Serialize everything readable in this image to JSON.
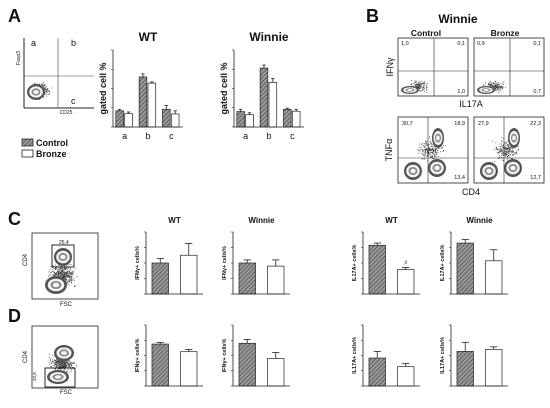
{
  "panel_letters": [
    "A",
    "B",
    "C",
    "D"
  ],
  "panelA": {
    "dot_plot": {
      "y_axis": "Foxp3",
      "x_axis": "CD25",
      "quadrants": [
        "a",
        "b",
        "c"
      ]
    },
    "legend": [
      "Control",
      "Bronze"
    ]
  },
  "panelB": {
    "title": "Winnie",
    "columns": [
      "Control",
      "Bronze"
    ],
    "top": {
      "y_axis": "IFNγ",
      "x_axis": "IL17A",
      "control": {
        "ul": "1,0",
        "ur": "0,1",
        "lr": "1,0"
      },
      "bronze": {
        "ul": "0,9",
        "ur": "0,1",
        "lr": "0,7"
      }
    },
    "bottom": {
      "y_axis": "TNFα",
      "x_axis": "CD4",
      "control": {
        "ul": "30,7",
        "ur": "18,9",
        "lr": "13,4"
      },
      "bronze": {
        "ul": "27,9",
        "ur": "22,3",
        "lr": "12,7"
      }
    }
  },
  "panelC": {
    "gate_value": "25,4",
    "y_axis": "CD4",
    "x_axis": "FSC"
  },
  "panelD": {
    "gate_value": "33,8",
    "y_axis": "CD4",
    "x_axis": "FSC"
  },
  "colors": {
    "hatch": "#6b6b6b",
    "bar_outline": "#222222",
    "dot": "#333333"
  },
  "chart_data": [
    {
      "id": "A-WT",
      "type": "bar",
      "title": "WT",
      "ylabel": "gated cell %",
      "categories": [
        "a",
        "b",
        "c"
      ],
      "ylim": [
        0,
        20
      ],
      "yticks": [],
      "series": [
        {
          "name": "Control",
          "values": [
            4.2,
            13.0,
            4.6
          ],
          "errors": [
            0.4,
            0.8,
            1.0
          ]
        },
        {
          "name": "Bronze",
          "values": [
            3.5,
            11.4,
            3.4
          ],
          "errors": [
            0.4,
            0.3,
            0.8
          ]
        }
      ]
    },
    {
      "id": "A-Winnie",
      "type": "bar",
      "title": "Winnie",
      "ylabel": "gated cell %",
      "categories": [
        "a",
        "b",
        "c"
      ],
      "ylim": [
        0,
        20
      ],
      "yticks": [],
      "series": [
        {
          "name": "Control",
          "values": [
            4.0,
            15.3,
            4.6
          ],
          "errors": [
            0.6,
            0.8,
            0.3
          ]
        },
        {
          "name": "Bronze",
          "values": [
            3.2,
            11.6,
            4.1
          ],
          "errors": [
            0.5,
            1.0,
            0.5
          ]
        }
      ]
    },
    {
      "id": "C-IFN-WT",
      "type": "bar",
      "title": "WT",
      "ylabel": "IFNγ+ cells%",
      "categories": [
        "Control",
        "Bronze"
      ],
      "ylim": [
        0,
        2
      ],
      "yticks": [],
      "series": [
        {
          "name": "",
          "values": [
            1.0,
            1.25
          ],
          "errors": [
            0.15,
            0.38
          ]
        }
      ]
    },
    {
      "id": "C-IFN-Winnie",
      "type": "bar",
      "title": "Winnie",
      "ylabel": "IFNγ+ cells%",
      "categories": [
        "Control",
        "Bronze"
      ],
      "ylim": [
        0,
        2
      ],
      "yticks": [],
      "series": [
        {
          "name": "",
          "values": [
            1.0,
            0.9
          ],
          "errors": [
            0.1,
            0.2
          ]
        }
      ]
    },
    {
      "id": "C-IL17-WT",
      "type": "bar",
      "title": "WT",
      "ylabel": "IL17A+ cells%",
      "categories": [
        "Control",
        "Bronze"
      ],
      "ylim": [
        0,
        1.4
      ],
      "yticks": [],
      "series": [
        {
          "name": "",
          "values": [
            1.1,
            0.55
          ],
          "errors": [
            0.05,
            0.05
          ]
        }
      ]
    },
    {
      "id": "C-IL17-Winnie",
      "type": "bar",
      "title": "Winnie",
      "ylabel": "IL17A+ cells%",
      "categories": [
        "Control",
        "Bronze"
      ],
      "ylim": [
        0,
        1.4
      ],
      "yticks": [],
      "series": [
        {
          "name": "",
          "values": [
            1.15,
            0.75
          ],
          "errors": [
            0.08,
            0.25
          ]
        }
      ]
    },
    {
      "id": "D-IFN-WT",
      "type": "bar",
      "title": "",
      "ylabel": "IFNγ+ cells%",
      "categories": [
        "Control",
        "Bronze"
      ],
      "ylim": [
        0,
        8
      ],
      "yticks": [],
      "series": [
        {
          "name": "",
          "values": [
            5.5,
            4.5
          ],
          "errors": [
            0.2,
            0.3
          ]
        }
      ]
    },
    {
      "id": "D-IFN-Winnie",
      "type": "bar",
      "title": "",
      "ylabel": "IFNγ+ cells%",
      "categories": [
        "Control",
        "Bronze"
      ],
      "ylim": [
        0,
        8
      ],
      "yticks": [],
      "series": [
        {
          "name": "",
          "values": [
            5.6,
            3.6
          ],
          "errors": [
            0.5,
            0.8
          ]
        }
      ]
    },
    {
      "id": "D-IL17-WT",
      "type": "bar",
      "title": "",
      "ylabel": "IL17A+ cells%",
      "categories": [
        "Control",
        "Bronze"
      ],
      "ylim": [
        0,
        1.2
      ],
      "yticks": [],
      "series": [
        {
          "name": "",
          "values": [
            0.55,
            0.38
          ],
          "errors": [
            0.13,
            0.06
          ]
        }
      ]
    },
    {
      "id": "D-IL17-Winnie",
      "type": "bar",
      "title": "",
      "ylabel": "IL17A+ cells%",
      "categories": [
        "Control",
        "Bronze"
      ],
      "ylim": [
        0,
        1.2
      ],
      "yticks": [],
      "series": [
        {
          "name": "",
          "values": [
            0.68,
            0.72
          ],
          "errors": [
            0.18,
            0.05
          ]
        }
      ]
    }
  ]
}
